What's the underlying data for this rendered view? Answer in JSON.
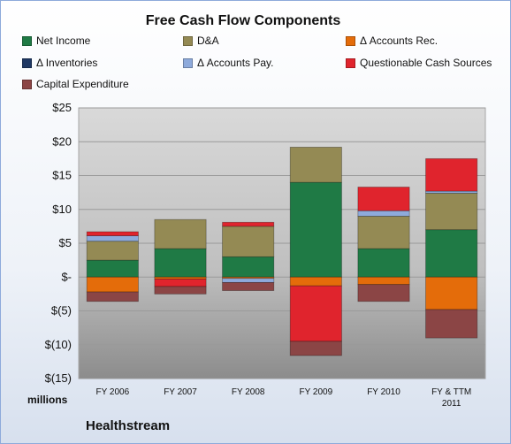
{
  "chart_data": {
    "type": "bar",
    "stacked": true,
    "title": "Free Cash Flow Components",
    "units_label": "millions",
    "company": "Healthstream",
    "categories": [
      "FY 2006",
      "FY 2007",
      "FY 2008",
      "FY 2009",
      "FY 2010",
      "FY & TTM 2011"
    ],
    "category_lines": [
      [
        "FY 2006"
      ],
      [
        "FY 2007"
      ],
      [
        "FY 2008"
      ],
      [
        "FY 2009"
      ],
      [
        "FY 2010"
      ],
      [
        "FY & TTM",
        "2011"
      ]
    ],
    "ylim": [
      -15,
      25
    ],
    "yticks": [
      25,
      20,
      15,
      10,
      5,
      0,
      -5,
      -10,
      -15
    ],
    "ytick_labels": [
      "$25",
      "$20",
      "$15",
      "$10",
      "$5",
      "$-",
      "$(5)",
      "$(10)",
      "$(15)"
    ],
    "legend_position": "top",
    "grid": true,
    "series": [
      {
        "name": "Net Income",
        "color": "#1f7a45",
        "values": [
          2.5,
          4.2,
          3.0,
          14.0,
          4.2,
          7.0
        ]
      },
      {
        "name": "D&A",
        "color": "#948a54",
        "values": [
          2.8,
          4.3,
          4.5,
          5.2,
          4.8,
          5.4
        ]
      },
      {
        "name": "Δ Accounts Rec.",
        "color": "#e46c0a",
        "values": [
          -2.2,
          -0.3,
          -0.2,
          -1.3,
          -1.1,
          -4.8
        ]
      },
      {
        "name": "Δ Inventories",
        "color": "#1f3864",
        "values": [
          0.0,
          0.0,
          0.0,
          0.0,
          0.0,
          0.0
        ]
      },
      {
        "name": "Δ Accounts Pay.",
        "color": "#8eaadb",
        "values": [
          0.8,
          0.0,
          -0.6,
          0.0,
          0.8,
          0.3
        ]
      },
      {
        "name": "Questionable Cash Sources",
        "color": "#e0242d",
        "values": [
          0.6,
          -1.1,
          0.6,
          -8.2,
          3.5,
          4.8
        ]
      },
      {
        "name": "Capital Expenditure",
        "color": "#8b4545",
        "values": [
          -1.4,
          -1.1,
          -1.2,
          -2.1,
          -2.5,
          -4.2
        ]
      }
    ]
  }
}
